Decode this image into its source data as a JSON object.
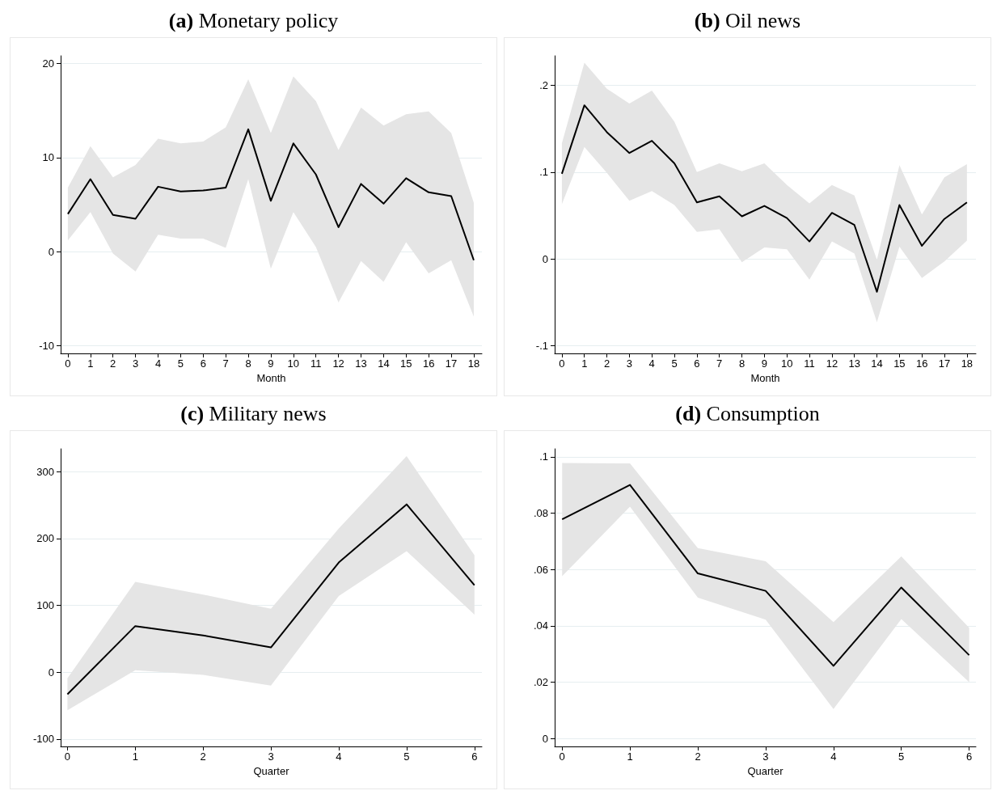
{
  "chart_data": [
    {
      "type": "line",
      "title": "(a) Monetary policy",
      "xlabel": "Month",
      "x": [
        0,
        1,
        2,
        3,
        4,
        5,
        6,
        7,
        8,
        9,
        10,
        11,
        12,
        13,
        14,
        15,
        16,
        17,
        18
      ],
      "xlim": [
        -0.32,
        18.36
      ],
      "xticks": [
        0,
        1,
        2,
        3,
        4,
        5,
        6,
        7,
        8,
        9,
        10,
        11,
        12,
        13,
        14,
        15,
        16,
        17,
        18
      ],
      "ylim": [
        -10.8,
        20.8
      ],
      "yticks": [
        -10,
        0,
        10,
        20
      ],
      "grid": "y",
      "series": [
        {
          "color": "#000000",
          "values": [
            4.0,
            7.7,
            3.9,
            3.5,
            6.9,
            6.4,
            6.5,
            6.8,
            13.0,
            5.4,
            11.5,
            8.2,
            2.6,
            7.2,
            5.1,
            7.8,
            6.3,
            5.9,
            -0.9
          ],
          "lower": [
            1.2,
            4.2,
            -0.2,
            -2.1,
            1.8,
            1.4,
            1.4,
            0.4,
            7.7,
            -1.8,
            4.2,
            0.5,
            -5.4,
            -1.0,
            -3.2,
            1.0,
            -2.3,
            -0.9,
            -6.9
          ],
          "upper": [
            6.8,
            11.2,
            7.9,
            9.2,
            12.0,
            11.5,
            11.7,
            13.2,
            18.3,
            12.6,
            18.6,
            16.0,
            10.8,
            15.3,
            13.4,
            14.6,
            14.9,
            12.6,
            5.2
          ]
        }
      ]
    },
    {
      "type": "line",
      "title": "(b) Oil news",
      "xlabel": "Month",
      "x": [
        0,
        1,
        2,
        3,
        4,
        5,
        6,
        7,
        8,
        9,
        10,
        11,
        12,
        13,
        14,
        15,
        16,
        17,
        18
      ],
      "xlim": [
        -0.32,
        18.4
      ],
      "xticks": [
        0,
        1,
        2,
        3,
        4,
        5,
        6,
        7,
        8,
        9,
        10,
        11,
        12,
        13,
        14,
        15,
        16,
        17,
        18
      ],
      "ylim": [
        -0.109,
        0.234
      ],
      "yticks": [
        {
          "value": -0.1,
          "label": "-.1"
        },
        0,
        {
          "value": 0.1,
          "label": ".1"
        },
        {
          "value": 0.2,
          "label": ".2"
        }
      ],
      "grid": "y",
      "series": [
        {
          "color": "#000000",
          "values": [
            0.098,
            0.177,
            0.146,
            0.122,
            0.136,
            0.11,
            0.065,
            0.072,
            0.049,
            0.061,
            0.047,
            0.02,
            0.053,
            0.039,
            -0.038,
            0.062,
            0.015,
            0.046,
            0.065
          ],
          "lower": [
            0.063,
            0.129,
            0.099,
            0.067,
            0.078,
            0.062,
            0.031,
            0.034,
            -0.004,
            0.013,
            0.011,
            -0.024,
            0.02,
            0.006,
            -0.073,
            0.014,
            -0.022,
            -0.003,
            0.021
          ],
          "upper": [
            0.133,
            0.226,
            0.196,
            0.179,
            0.194,
            0.158,
            0.1,
            0.11,
            0.101,
            0.11,
            0.085,
            0.064,
            0.085,
            0.073,
            -0.001,
            0.108,
            0.051,
            0.094,
            0.109
          ]
        }
      ]
    },
    {
      "type": "line",
      "title": "(c) Military news",
      "xlabel": "Quarter",
      "x": [
        0,
        1,
        2,
        3,
        4,
        5,
        6
      ],
      "xlim": [
        -0.1,
        6.11
      ],
      "xticks": [
        0,
        1,
        2,
        3,
        4,
        5,
        6
      ],
      "ylim": [
        -111,
        334
      ],
      "yticks": [
        -100,
        0,
        100,
        200,
        300
      ],
      "grid": "y",
      "series": [
        {
          "color": "#000000",
          "values": [
            -33,
            69,
            55,
            37,
            164,
            251,
            130
          ],
          "lower": [
            -57,
            3,
            -4,
            -20,
            114,
            181,
            86
          ],
          "upper": [
            -9,
            135,
            116,
            95,
            215,
            323,
            175
          ]
        }
      ]
    },
    {
      "type": "line",
      "title": "(d) Consumption",
      "xlabel": "Quarter",
      "x": [
        0,
        1,
        2,
        3,
        4,
        5,
        6
      ],
      "xlim": [
        -0.11,
        6.1
      ],
      "xticks": [
        0,
        1,
        2,
        3,
        4,
        5,
        6
      ],
      "ylim": [
        -0.0028,
        0.1028
      ],
      "yticks": [
        0,
        {
          "value": 0.02,
          "label": ".02"
        },
        {
          "value": 0.04,
          "label": ".04"
        },
        {
          "value": 0.06,
          "label": ".06"
        },
        {
          "value": 0.08,
          "label": ".08"
        },
        {
          "value": 0.1,
          "label": ".1"
        }
      ],
      "grid": "y",
      "series": [
        {
          "color": "#000000",
          "values": [
            0.0778,
            0.09,
            0.0586,
            0.0524,
            0.0258,
            0.0536,
            0.0296
          ],
          "lower": [
            0.0576,
            0.0823,
            0.05,
            0.0422,
            0.0105,
            0.0424,
            0.02
          ],
          "upper": [
            0.0978,
            0.0976,
            0.0676,
            0.0629,
            0.0413,
            0.0646,
            0.0393
          ]
        }
      ]
    }
  ]
}
